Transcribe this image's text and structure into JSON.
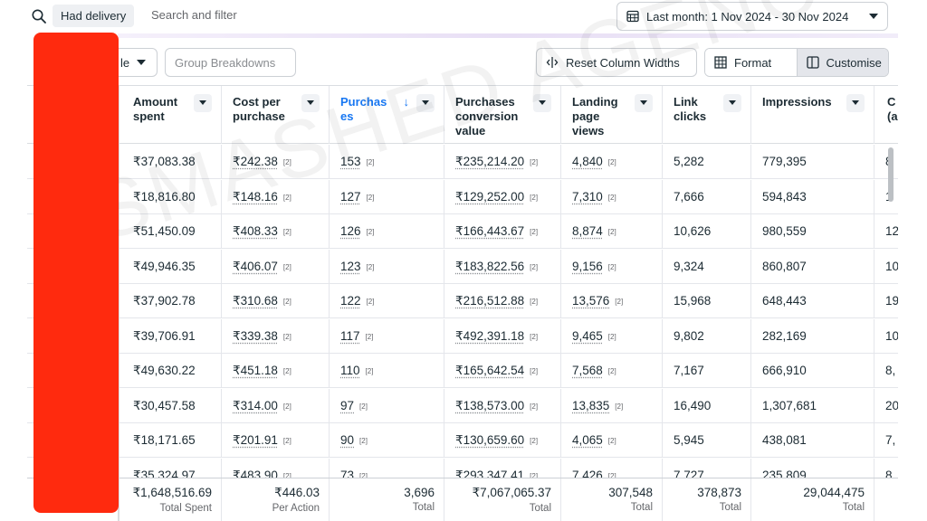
{
  "filter_bar": {
    "chip": "Had delivery",
    "search_placeholder": "Search and filter",
    "date_range": "Last month: 1 Nov 2024 - 30 Nov 2024"
  },
  "toolbar": {
    "partial_dropdown": "le",
    "group_breakdowns": "Group Breakdowns",
    "reset_widths": "Reset Column Widths",
    "format": "Format",
    "customise": "Customise"
  },
  "columns": [
    {
      "label": "Amount spent"
    },
    {
      "label": "Cost per purchase"
    },
    {
      "label": "Purchases",
      "sorted": "desc"
    },
    {
      "label": "Purchases conversion value"
    },
    {
      "label": "Landing page views"
    },
    {
      "label": "Link clicks"
    },
    {
      "label": "Impressions"
    },
    {
      "label": "C(a"
    }
  ],
  "ref_marker": "[2]",
  "rows": [
    {
      "amount": "₹37,083.38",
      "cpp": "₹242.38",
      "purchases": "153",
      "value": "₹235,214.20",
      "lpv": "4,840",
      "clicks": "5,282",
      "impr": "779,395",
      "extra": "8"
    },
    {
      "amount": "₹18,816.80",
      "cpp": "₹148.16",
      "purchases": "127",
      "value": "₹129,252.00",
      "lpv": "7,310",
      "clicks": "7,666",
      "impr": "594,843",
      "extra": "1"
    },
    {
      "amount": "₹51,450.09",
      "cpp": "₹408.33",
      "purchases": "126",
      "value": "₹166,443.67",
      "lpv": "8,874",
      "clicks": "10,626",
      "impr": "980,559",
      "extra": "12"
    },
    {
      "amount": "₹49,946.35",
      "cpp": "₹406.07",
      "purchases": "123",
      "value": "₹183,822.56",
      "lpv": "9,156",
      "clicks": "9,324",
      "impr": "860,807",
      "extra": "10"
    },
    {
      "amount": "₹37,902.78",
      "cpp": "₹310.68",
      "purchases": "122",
      "value": "₹216,512.88",
      "lpv": "13,576",
      "clicks": "15,968",
      "impr": "648,443",
      "extra": "19"
    },
    {
      "amount": "₹39,706.91",
      "cpp": "₹339.38",
      "purchases": "117",
      "value": "₹492,391.18",
      "lpv": "9,465",
      "clicks": "9,802",
      "impr": "282,169",
      "extra": "10"
    },
    {
      "amount": "₹49,630.22",
      "cpp": "₹451.18",
      "purchases": "110",
      "value": "₹165,642.54",
      "lpv": "7,568",
      "clicks": "7,167",
      "impr": "666,910",
      "extra": "8,"
    },
    {
      "amount": "₹30,457.58",
      "cpp": "₹314.00",
      "purchases": "97",
      "value": "₹138,573.00",
      "lpv": "13,835",
      "clicks": "16,490",
      "impr": "1,307,681",
      "extra": "20"
    },
    {
      "amount": "₹18,171.65",
      "cpp": "₹201.91",
      "purchases": "90",
      "value": "₹130,659.60",
      "lpv": "4,065",
      "clicks": "5,945",
      "impr": "438,081",
      "extra": "7,"
    },
    {
      "amount": "₹35,324.97",
      "cpp": "₹483.90",
      "purchases": "73",
      "value": "₹293,347.41",
      "lpv": "7,426",
      "clicks": "7,727",
      "impr": "235,809",
      "extra": "8"
    }
  ],
  "totals": [
    {
      "value": "₹1,648,516.69",
      "label": "Total Spent"
    },
    {
      "value": "₹446.03",
      "label": "Per Action"
    },
    {
      "value": "3,696",
      "label": "Total"
    },
    {
      "value": "₹7,067,065.37",
      "label": "Total"
    },
    {
      "value": "307,548",
      "label": "Total"
    },
    {
      "value": "378,873",
      "label": "Total"
    },
    {
      "value": "29,044,475",
      "label": "Total"
    }
  ],
  "watermark": "SMASHED AGENCY",
  "colors": {
    "link_blue": "#1877f2",
    "redaction": "#ff2a0e"
  }
}
